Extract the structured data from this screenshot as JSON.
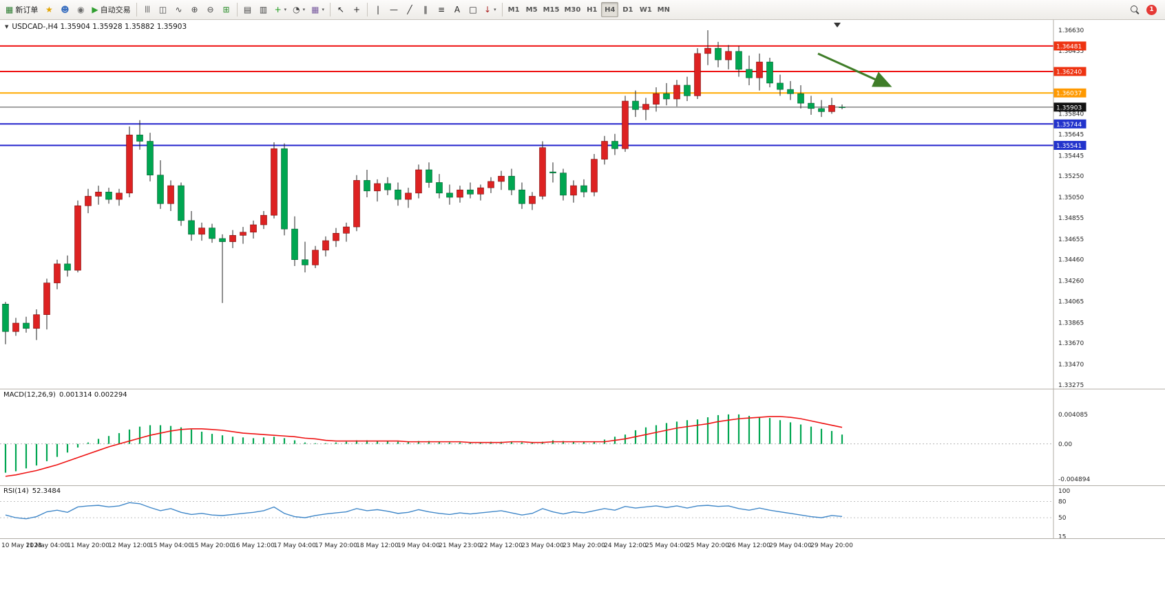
{
  "toolbar": {
    "new_order": {
      "label": "新订单",
      "glyph": "▦",
      "glyph_color": "#2e7d32"
    },
    "autotrading": {
      "label": "自动交易",
      "glyph": "▶",
      "glyph_color": "#2f9e2f"
    },
    "system_icons": [
      {
        "name": "market-button",
        "glyph": "★",
        "color": "#e2a400"
      },
      {
        "name": "profile-button",
        "glyph": "☻",
        "color": "#3a6fbf"
      },
      {
        "name": "sounds-button",
        "glyph": "◉",
        "color": "#6b6b6b"
      }
    ],
    "chart_icons": [
      {
        "name": "bar-chart-type-button",
        "glyph": "|||",
        "color": "#444444",
        "small": true
      },
      {
        "name": "candlestick-type-button",
        "glyph": "◫",
        "color": "#444444"
      },
      {
        "name": "line-chart-type-button",
        "glyph": "∿",
        "color": "#444444"
      },
      {
        "name": "zoom-in-button",
        "glyph": "⊕",
        "color": "#444444"
      },
      {
        "name": "zoom-out-button",
        "glyph": "⊖",
        "color": "#444444"
      },
      {
        "name": "tile-windows-button",
        "glyph": "⊞",
        "color": "#2f8f2f"
      }
    ],
    "manage_icons": [
      {
        "name": "cascade-windows-button",
        "glyph": "▤",
        "color": "#444444"
      },
      {
        "name": "arrange-windows-button",
        "glyph": "▥",
        "color": "#444444"
      },
      {
        "name": "indicators-button",
        "glyph": "+",
        "color": "#1a9a1a",
        "dropdown": true
      },
      {
        "name": "periods-button",
        "glyph": "◔",
        "color": "#444444",
        "dropdown": true
      },
      {
        "name": "templates-button",
        "glyph": "▦",
        "color": "#7a5ca0",
        "dropdown": true
      }
    ],
    "cursor_icons": [
      {
        "name": "cursor-button",
        "glyph": "↖",
        "color": "#222222"
      },
      {
        "name": "crosshair-button",
        "glyph": "+",
        "color": "#222222"
      }
    ],
    "drawing_icons": [
      {
        "name": "vertical-line-button",
        "glyph": "|",
        "color": "#222222"
      },
      {
        "name": "horizontal-line-button",
        "glyph": "—",
        "color": "#222222"
      },
      {
        "name": "trendline-button",
        "glyph": "╱",
        "color": "#222222"
      },
      {
        "name": "channel-button",
        "glyph": "∥",
        "color": "#222222"
      },
      {
        "name": "fibonacci-button",
        "glyph": "≡",
        "color": "#222222"
      },
      {
        "name": "text-tool-button",
        "glyph": "A",
        "color": "#222222"
      },
      {
        "name": "label-tool-button",
        "glyph": "□",
        "color": "#222222"
      },
      {
        "name": "arrows-tool-button",
        "glyph": "↓",
        "color": "#aa2222",
        "dropdown": true
      }
    ],
    "timeframes": {
      "items": [
        "M1",
        "M5",
        "M15",
        "M30",
        "H1",
        "H4",
        "D1",
        "W1",
        "MN"
      ],
      "active": "H4"
    },
    "right": {
      "notification_count": "1"
    }
  },
  "chart": {
    "symbol_line": "USDCAD-,H4  1.35904 1.35928 1.35882 1.35903"
  },
  "indicators": {
    "macd": {
      "title": "MACD(12,26,9)",
      "values": "0.001314 0.002294"
    },
    "rsi": {
      "title": "RSI(14)",
      "values": "52.3484"
    }
  },
  "colors": {
    "bull": "#dd2222",
    "bear": "#00a651",
    "wick": "#222222",
    "background": "#ffffff"
  },
  "chart_data": {
    "type": "candlestick",
    "symbol": "USDCAD",
    "timeframe": "H4",
    "ohlc_current": {
      "open": 1.35904,
      "high": 1.35928,
      "low": 1.35882,
      "close": 1.35903
    },
    "price_ticks": [
      "1.36630",
      "1.36435",
      "1.36240",
      "1.36045",
      "1.35840",
      "1.35645",
      "1.35445",
      "1.35250",
      "1.35050",
      "1.34855",
      "1.34655",
      "1.34460",
      "1.34260",
      "1.34065",
      "1.33865",
      "1.33670",
      "1.33470",
      "1.33275"
    ],
    "time_labels": [
      "10 May 2023",
      "11 May 04:00",
      "11 May 20:00",
      "12 May 12:00",
      "15 May 04:00",
      "15 May 20:00",
      "16 May 12:00",
      "17 May 04:00",
      "17 May 20:00",
      "18 May 12:00",
      "19 May 04:00",
      "21 May 23:00",
      "22 May 12:00",
      "23 May 04:00",
      "23 May 20:00",
      "24 May 12:00",
      "25 May 04:00",
      "25 May 20:00",
      "26 May 12:00",
      "29 May 04:00",
      "29 May 20:00"
    ],
    "levels": [
      {
        "price": 1.36481,
        "color": "#ee1111",
        "badge_bg": "#ee3311",
        "width": 2
      },
      {
        "price": 1.3624,
        "color": "#ee1111",
        "badge_bg": "#ee3311",
        "width": 2
      },
      {
        "price": 1.36037,
        "color": "#ffaa00",
        "badge_bg": "#ff9900",
        "width": 2
      },
      {
        "price": 1.35744,
        "color": "#2222cc",
        "badge_bg": "#2233cc",
        "width": 2
      },
      {
        "price": 1.35541,
        "color": "#2222cc",
        "badge_bg": "#2233cc",
        "width": 2
      }
    ],
    "current_price_line": {
      "price": 1.35903,
      "color": "#444444",
      "badge_bg": "#111111",
      "width": 1
    },
    "annotations": [
      {
        "type": "arrow",
        "color": "#3f7d28",
        "from": [
          1188,
          49
        ],
        "to": [
          1290,
          95
        ]
      }
    ],
    "candles": [
      [
        1.3404,
        1.3406,
        1.3366,
        1.3378
      ],
      [
        1.3378,
        1.3391,
        1.3374,
        1.3386
      ],
      [
        1.3386,
        1.3392,
        1.3377,
        1.3381
      ],
      [
        1.3381,
        1.3399,
        1.337,
        1.3394
      ],
      [
        1.3394,
        1.3428,
        1.338,
        1.3424
      ],
      [
        1.3424,
        1.3446,
        1.3418,
        1.3442
      ],
      [
        1.3442,
        1.345,
        1.343,
        1.3436
      ],
      [
        1.3436,
        1.3502,
        1.3434,
        1.3497
      ],
      [
        1.3497,
        1.3513,
        1.349,
        1.3506
      ],
      [
        1.3506,
        1.3516,
        1.3498,
        1.351
      ],
      [
        1.351,
        1.3514,
        1.3499,
        1.3503
      ],
      [
        1.3503,
        1.3513,
        1.3497,
        1.3509
      ],
      [
        1.3509,
        1.3572,
        1.3505,
        1.3564
      ],
      [
        1.3564,
        1.3578,
        1.355,
        1.3558
      ],
      [
        1.3558,
        1.3566,
        1.352,
        1.3526
      ],
      [
        1.3526,
        1.354,
        1.3494,
        1.3499
      ],
      [
        1.3499,
        1.3521,
        1.3492,
        1.3516
      ],
      [
        1.3516,
        1.3519,
        1.3478,
        1.3483
      ],
      [
        1.3483,
        1.3492,
        1.3464,
        1.347
      ],
      [
        1.347,
        1.3481,
        1.3464,
        1.3476
      ],
      [
        1.3476,
        1.348,
        1.3462,
        1.3466
      ],
      [
        1.3466,
        1.347,
        1.3405,
        1.3463
      ],
      [
        1.3463,
        1.3474,
        1.3457,
        1.3469
      ],
      [
        1.3469,
        1.3477,
        1.3461,
        1.3472
      ],
      [
        1.3472,
        1.3483,
        1.3466,
        1.3479
      ],
      [
        1.3479,
        1.3492,
        1.3475,
        1.3488
      ],
      [
        1.3488,
        1.3557,
        1.3485,
        1.3551
      ],
      [
        1.3551,
        1.3556,
        1.3469,
        1.3475
      ],
      [
        1.3475,
        1.3487,
        1.344,
        1.3446
      ],
      [
        1.3446,
        1.3463,
        1.3434,
        1.3441
      ],
      [
        1.3441,
        1.3459,
        1.3438,
        1.3455
      ],
      [
        1.3455,
        1.3468,
        1.3449,
        1.3464
      ],
      [
        1.3464,
        1.3476,
        1.3458,
        1.3471
      ],
      [
        1.3471,
        1.3481,
        1.3463,
        1.3477
      ],
      [
        1.3477,
        1.3526,
        1.3473,
        1.3521
      ],
      [
        1.3521,
        1.3531,
        1.3505,
        1.3511
      ],
      [
        1.3511,
        1.3522,
        1.3501,
        1.3518
      ],
      [
        1.3518,
        1.3524,
        1.3507,
        1.3512
      ],
      [
        1.3512,
        1.3519,
        1.3497,
        1.3503
      ],
      [
        1.3503,
        1.3514,
        1.3495,
        1.3509
      ],
      [
        1.3509,
        1.3536,
        1.3504,
        1.3531
      ],
      [
        1.3531,
        1.3538,
        1.3514,
        1.3519
      ],
      [
        1.3519,
        1.3527,
        1.3504,
        1.3509
      ],
      [
        1.3509,
        1.3517,
        1.3498,
        1.3505
      ],
      [
        1.3505,
        1.3516,
        1.35,
        1.3512
      ],
      [
        1.3512,
        1.3519,
        1.3504,
        1.3508
      ],
      [
        1.3508,
        1.3517,
        1.3502,
        1.3514
      ],
      [
        1.3514,
        1.3524,
        1.3509,
        1.352
      ],
      [
        1.352,
        1.353,
        1.3512,
        1.3525
      ],
      [
        1.3525,
        1.3532,
        1.3507,
        1.3512
      ],
      [
        1.3512,
        1.3519,
        1.3494,
        1.3499
      ],
      [
        1.3499,
        1.351,
        1.3493,
        1.3506
      ],
      [
        1.3506,
        1.3558,
        1.3503,
        1.3552
      ],
      [
        1.3529,
        1.3538,
        1.3519,
        1.3528
      ],
      [
        1.3528,
        1.3532,
        1.3502,
        1.3507
      ],
      [
        1.3507,
        1.3521,
        1.35,
        1.3516
      ],
      [
        1.3516,
        1.3522,
        1.3505,
        1.351
      ],
      [
        1.351,
        1.3546,
        1.3506,
        1.3541
      ],
      [
        1.3541,
        1.3563,
        1.3536,
        1.3558
      ],
      [
        1.3558,
        1.3565,
        1.3545,
        1.3551
      ],
      [
        1.3551,
        1.3601,
        1.3548,
        1.3596
      ],
      [
        1.3596,
        1.3606,
        1.3581,
        1.3588
      ],
      [
        1.3588,
        1.3599,
        1.3578,
        1.3593
      ],
      [
        1.3593,
        1.3609,
        1.3586,
        1.3603
      ],
      [
        1.3603,
        1.3613,
        1.3592,
        1.3598
      ],
      [
        1.3598,
        1.3616,
        1.3591,
        1.3611
      ],
      [
        1.3611,
        1.3619,
        1.3596,
        1.3601
      ],
      [
        1.3601,
        1.3646,
        1.3598,
        1.3641
      ],
      [
        1.3641,
        1.3663,
        1.363,
        1.3646
      ],
      [
        1.3646,
        1.3652,
        1.3628,
        1.3635
      ],
      [
        1.3635,
        1.3649,
        1.3626,
        1.3643
      ],
      [
        1.3643,
        1.3648,
        1.3619,
        1.3626
      ],
      [
        1.3626,
        1.3639,
        1.3611,
        1.3618
      ],
      [
        1.3618,
        1.3641,
        1.3606,
        1.3633
      ],
      [
        1.3633,
        1.3637,
        1.3609,
        1.3613
      ],
      [
        1.3613,
        1.3621,
        1.3601,
        1.3607
      ],
      [
        1.3607,
        1.3615,
        1.3597,
        1.3603
      ],
      [
        1.3603,
        1.3611,
        1.3589,
        1.3594
      ],
      [
        1.3594,
        1.3601,
        1.3583,
        1.3589
      ],
      [
        1.3589,
        1.3597,
        1.3581,
        1.3586
      ],
      [
        1.3586,
        1.3599,
        1.3584,
        1.3592
      ],
      [
        1.35904,
        1.35928,
        1.35882,
        1.35903
      ]
    ],
    "macd": {
      "axis_labels": [
        "0.004085",
        "0.00",
        "-0.004894"
      ],
      "axis": [
        0.004085,
        0,
        -0.004894
      ],
      "histogram_color": "#00a651",
      "signal_color": "#ee1111",
      "histogram": [
        -0.004,
        -0.0038,
        -0.0034,
        -0.003,
        -0.0024,
        -0.0018,
        -0.0012,
        -0.0005,
        0.0002,
        0.0007,
        0.0011,
        0.0015,
        0.002,
        0.0024,
        0.0026,
        0.0026,
        0.0025,
        0.0023,
        0.002,
        0.0017,
        0.0014,
        0.0012,
        0.001,
        0.0009,
        0.0008,
        0.0009,
        0.001,
        0.0008,
        0.0005,
        0.0002,
        0.0001,
        0.0001,
        0.0002,
        0.0003,
        0.0005,
        0.0005,
        0.0004,
        0.0004,
        0.0003,
        0.0003,
        0.0004,
        0.0004,
        0.0003,
        0.0002,
        0.0002,
        0.0002,
        0.0002,
        0.0003,
        0.0003,
        0.0003,
        0.0002,
        0.0002,
        0.0003,
        0.0005,
        0.0004,
        0.0003,
        0.0003,
        0.0003,
        0.0006,
        0.001,
        0.0013,
        0.0019,
        0.0023,
        0.0026,
        0.0029,
        0.0031,
        0.0033,
        0.0034,
        0.0037,
        0.004,
        0.0041,
        0.0041,
        0.0039,
        0.0037,
        0.0036,
        0.0033,
        0.003,
        0.0027,
        0.0024,
        0.0021,
        0.0018,
        0.0013
      ],
      "signal": [
        -0.0045,
        -0.0043,
        -0.004,
        -0.0037,
        -0.0033,
        -0.0029,
        -0.0024,
        -0.0019,
        -0.0014,
        -0.0009,
        -0.0004,
        0.0,
        0.0004,
        0.0008,
        0.0012,
        0.0015,
        0.0018,
        0.002,
        0.0021,
        0.0021,
        0.002,
        0.0019,
        0.0017,
        0.0015,
        0.0014,
        0.0013,
        0.0012,
        0.0011,
        0.001,
        0.0008,
        0.0007,
        0.0005,
        0.0004,
        0.0004,
        0.0004,
        0.0004,
        0.0004,
        0.0004,
        0.0004,
        0.0003,
        0.0003,
        0.0003,
        0.0003,
        0.0003,
        0.0003,
        0.0002,
        0.0002,
        0.0002,
        0.0002,
        0.0003,
        0.0003,
        0.0002,
        0.0002,
        0.0003,
        0.0003,
        0.0003,
        0.0003,
        0.0003,
        0.0003,
        0.0005,
        0.0007,
        0.001,
        0.0013,
        0.0016,
        0.0019,
        0.0022,
        0.0024,
        0.0026,
        0.0028,
        0.0031,
        0.0033,
        0.0035,
        0.0036,
        0.0037,
        0.0038,
        0.0038,
        0.0037,
        0.0035,
        0.0032,
        0.0029,
        0.0026,
        0.0023
      ]
    },
    "rsi": {
      "axis_labels": [
        "100",
        "80",
        "50",
        "15"
      ],
      "axis_values": [
        100,
        80,
        50,
        15
      ],
      "dashed_levels": [
        80,
        50
      ],
      "line_color": "#3e86c8",
      "values": [
        55,
        50,
        48,
        52,
        61,
        64,
        60,
        70,
        72,
        73,
        70,
        72,
        78,
        76,
        69,
        63,
        67,
        60,
        56,
        58,
        55,
        54,
        56,
        58,
        60,
        63,
        70,
        58,
        52,
        50,
        54,
        57,
        59,
        61,
        67,
        63,
        65,
        62,
        58,
        60,
        65,
        61,
        58,
        56,
        59,
        57,
        59,
        61,
        63,
        59,
        55,
        58,
        67,
        61,
        57,
        61,
        59,
        63,
        67,
        64,
        71,
        68,
        70,
        72,
        69,
        72,
        68,
        72,
        73,
        71,
        72,
        67,
        64,
        68,
        64,
        61,
        58,
        55,
        52,
        50,
        54,
        52.35
      ]
    }
  }
}
